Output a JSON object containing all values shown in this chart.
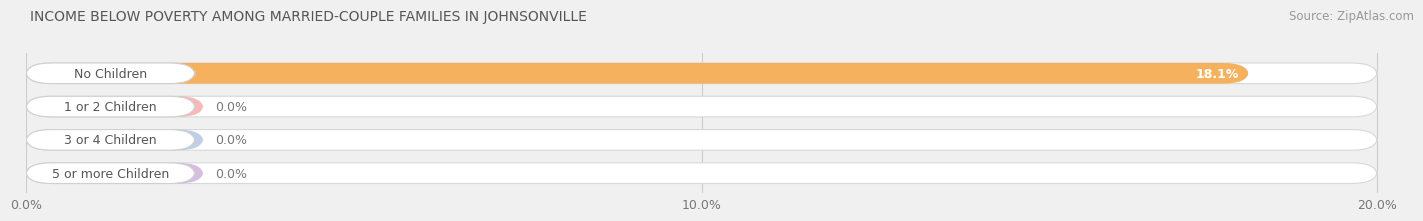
{
  "title": "INCOME BELOW POVERTY AMONG MARRIED-COUPLE FAMILIES IN JOHNSONVILLE",
  "source": "Source: ZipAtlas.com",
  "categories": [
    "No Children",
    "1 or 2 Children",
    "3 or 4 Children",
    "5 or more Children"
  ],
  "values": [
    18.1,
    0.0,
    0.0,
    0.0
  ],
  "bar_colors": [
    "#f5a94e",
    "#f4a0a0",
    "#a8bfe0",
    "#c8a8d8"
  ],
  "background_color": "#f0f0f0",
  "bar_bg_color": "#e0e0e0",
  "xlim": [
    0,
    20.5
  ],
  "xticks": [
    0.0,
    10.0,
    20.0
  ],
  "xtick_labels": [
    "0.0%",
    "10.0%",
    "20.0%"
  ],
  "value_labels": [
    "18.1%",
    "0.0%",
    "0.0%",
    "0.0%"
  ],
  "title_fontsize": 10,
  "label_fontsize": 9,
  "tick_fontsize": 9,
  "source_fontsize": 8.5
}
